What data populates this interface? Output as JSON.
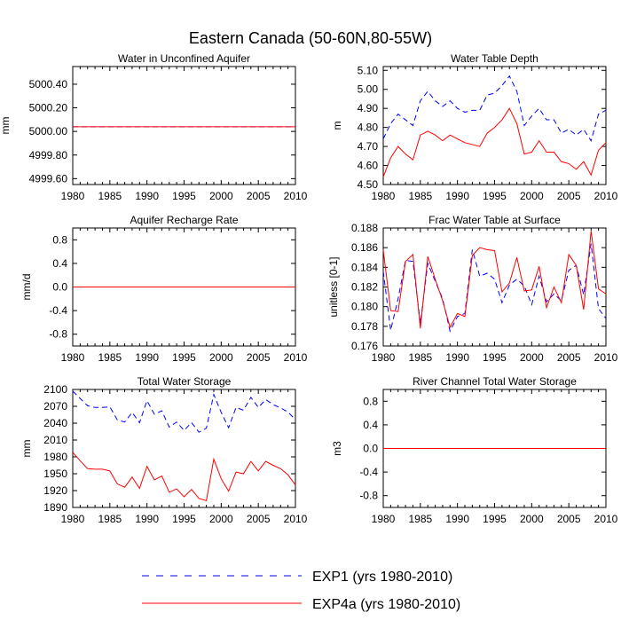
{
  "title": "Eastern Canada (50-60N,80-55W)",
  "legend": [
    {
      "label": "EXP1 (yrs 1980-2010)",
      "color": "#0000ff",
      "dash": "dashed"
    },
    {
      "label": "EXP4a (yrs 1980-2010)",
      "color": "#ff0000",
      "dash": "solid"
    }
  ],
  "chart_data": [
    {
      "type": "line",
      "title": "Water in Unconfined Aquifer",
      "ylabel": "mm",
      "xlim": [
        1980,
        2010
      ],
      "ylim": [
        4999.55,
        5000.55
      ],
      "yticks": [
        4999.6,
        4999.8,
        5000.0,
        5000.2,
        5000.4
      ],
      "ytick_labels": [
        "4999.60",
        "4999.80",
        "5000.00",
        "5000.20",
        "5000.40"
      ],
      "xticks": [
        1980,
        1985,
        1990,
        1995,
        2000,
        2005,
        2010
      ],
      "series": [
        {
          "name": "EXP1 (yrs 1980-2010)",
          "x": [
            1980,
            2010
          ],
          "values": [
            5000.04,
            5000.04
          ]
        },
        {
          "name": "EXP4a (yrs 1980-2010)",
          "x": [
            1980,
            2010
          ],
          "values": [
            5000.04,
            5000.04
          ]
        }
      ]
    },
    {
      "type": "line",
      "title": "Water Table Depth",
      "ylabel": "m",
      "xlim": [
        1980,
        2010
      ],
      "ylim": [
        4.5,
        5.12
      ],
      "yticks": [
        4.5,
        4.6,
        4.7,
        4.8,
        4.9,
        5.0,
        5.1
      ],
      "ytick_labels": [
        "4.50",
        "4.60",
        "4.70",
        "4.80",
        "4.90",
        "5.00",
        "5.10"
      ],
      "xticks": [
        1980,
        1985,
        1990,
        1995,
        2000,
        2005,
        2010
      ],
      "x": [
        1980,
        1981,
        1982,
        1983,
        1984,
        1985,
        1986,
        1987,
        1988,
        1989,
        1990,
        1991,
        1992,
        1993,
        1994,
        1995,
        1996,
        1997,
        1998,
        1999,
        2000,
        2001,
        2002,
        2003,
        2004,
        2005,
        2006,
        2007,
        2008,
        2009,
        2010
      ],
      "series": [
        {
          "name": "EXP1 (yrs 1980-2010)",
          "values": [
            4.74,
            4.82,
            4.87,
            4.84,
            4.81,
            4.94,
            4.99,
            4.94,
            4.91,
            4.94,
            4.9,
            4.88,
            4.89,
            4.89,
            4.97,
            4.98,
            5.02,
            5.07,
            4.99,
            4.81,
            4.86,
            4.9,
            4.84,
            4.84,
            4.77,
            4.79,
            4.76,
            4.79,
            4.73,
            4.87,
            4.89
          ]
        },
        {
          "name": "EXP4a (yrs 1980-2010)",
          "values": [
            4.54,
            4.64,
            4.7,
            4.66,
            4.63,
            4.76,
            4.78,
            4.76,
            4.73,
            4.76,
            4.74,
            4.72,
            4.71,
            4.7,
            4.77,
            4.8,
            4.84,
            4.9,
            4.82,
            4.66,
            4.67,
            4.73,
            4.67,
            4.67,
            4.62,
            4.61,
            4.58,
            4.62,
            4.55,
            4.68,
            4.72
          ]
        }
      ]
    },
    {
      "type": "line",
      "title": "Aquifer Recharge Rate",
      "ylabel": "mm/d",
      "xlim": [
        1980,
        2010
      ],
      "ylim": [
        -1.0,
        1.0
      ],
      "yticks": [
        -0.8,
        -0.4,
        0.0,
        0.4,
        0.8
      ],
      "ytick_labels": [
        "-0.8",
        "-0.4",
        "0.0",
        "0.4",
        "0.8"
      ],
      "xticks": [
        1980,
        1985,
        1990,
        1995,
        2000,
        2005,
        2010
      ],
      "series": [
        {
          "name": "EXP1 (yrs 1980-2010)",
          "x": [
            1980,
            2010
          ],
          "values": [
            0.0,
            0.0
          ]
        },
        {
          "name": "EXP4a (yrs 1980-2010)",
          "x": [
            1980,
            2010
          ],
          "values": [
            0.0,
            0.0
          ]
        }
      ]
    },
    {
      "type": "line",
      "title": "Frac Water Table at Surface",
      "ylabel": "unitless [0-1]",
      "xlim": [
        1980,
        2010
      ],
      "ylim": [
        0.176,
        0.188
      ],
      "yticks": [
        0.176,
        0.178,
        0.18,
        0.182,
        0.184,
        0.186,
        0.188
      ],
      "ytick_labels": [
        "0.176",
        "0.178",
        "0.180",
        "0.182",
        "0.184",
        "0.186",
        "0.188"
      ],
      "xticks": [
        1980,
        1985,
        1990,
        1995,
        2000,
        2005,
        2010
      ],
      "x": [
        1980,
        1981,
        1982,
        1983,
        1984,
        1985,
        1986,
        1987,
        1988,
        1989,
        1990,
        1991,
        1992,
        1993,
        1994,
        1995,
        1996,
        1997,
        1998,
        1999,
        2000,
        2001,
        2002,
        2003,
        2004,
        2005,
        2006,
        2007,
        2008,
        2009,
        2010
      ],
      "series": [
        {
          "name": "EXP1 (yrs 1980-2010)",
          "values": [
            0.1836,
            0.1776,
            0.1808,
            0.1847,
            0.1846,
            0.1783,
            0.1844,
            0.1826,
            0.1808,
            0.1775,
            0.179,
            0.1793,
            0.1858,
            0.1831,
            0.1834,
            0.1828,
            0.1804,
            0.1822,
            0.1828,
            0.1821,
            0.1802,
            0.1831,
            0.1805,
            0.1813,
            0.1806,
            0.1837,
            0.1842,
            0.1812,
            0.1864,
            0.1798,
            0.1788
          ]
        },
        {
          "name": "EXP4a (yrs 1980-2010)",
          "values": [
            0.1858,
            0.1796,
            0.1795,
            0.1846,
            0.1853,
            0.1778,
            0.1851,
            0.1828,
            0.1806,
            0.1779,
            0.1793,
            0.179,
            0.1852,
            0.186,
            0.1858,
            0.1857,
            0.1815,
            0.1824,
            0.185,
            0.1816,
            0.1817,
            0.1841,
            0.1799,
            0.182,
            0.1804,
            0.1853,
            0.1842,
            0.1797,
            0.1877,
            0.1818,
            0.1813
          ]
        }
      ]
    },
    {
      "type": "line",
      "title": "Total Water Storage",
      "ylabel": "mm",
      "xlim": [
        1980,
        2010
      ],
      "ylim": [
        1890,
        2100
      ],
      "yticks": [
        1890,
        1920,
        1950,
        1980,
        2010,
        2040,
        2070,
        2100
      ],
      "ytick_labels": [
        "1890",
        "1920",
        "1950",
        "1980",
        "2010",
        "2040",
        "2070",
        "2100"
      ],
      "xticks": [
        1980,
        1985,
        1990,
        1995,
        2000,
        2005,
        2010
      ],
      "x": [
        1980,
        1981,
        1982,
        1983,
        1984,
        1985,
        1986,
        1987,
        1988,
        1989,
        1990,
        1991,
        1992,
        1993,
        1994,
        1995,
        1996,
        1997,
        1998,
        1999,
        2000,
        2001,
        2002,
        2003,
        2004,
        2005,
        2006,
        2007,
        2008,
        2009,
        2010
      ],
      "series": [
        {
          "name": "EXP1 (yrs 1980-2010)",
          "values": [
            2097,
            2084,
            2071,
            2068,
            2068,
            2069,
            2046,
            2042,
            2059,
            2041,
            2080,
            2056,
            2062,
            2033,
            2042,
            2027,
            2041,
            2024,
            2031,
            2091,
            2059,
            2032,
            2068,
            2063,
            2086,
            2068,
            2082,
            2073,
            2067,
            2060,
            2046
          ]
        },
        {
          "name": "EXP4a (yrs 1980-2010)",
          "values": [
            1988,
            1973,
            1959,
            1958,
            1958,
            1955,
            1932,
            1926,
            1944,
            1924,
            1963,
            1939,
            1946,
            1917,
            1923,
            1909,
            1922,
            1906,
            1902,
            1976,
            1941,
            1919,
            1953,
            1950,
            1972,
            1955,
            1972,
            1965,
            1959,
            1948,
            1930
          ]
        }
      ]
    },
    {
      "type": "line",
      "title": "River Channel Total Water Storage",
      "ylabel": "m3",
      "xlim": [
        1980,
        2010
      ],
      "ylim": [
        -1.0,
        1.0
      ],
      "yticks": [
        -0.8,
        -0.4,
        0.0,
        0.4,
        0.8
      ],
      "ytick_labels": [
        "-0.8",
        "-0.4",
        "0.0",
        "0.4",
        "0.8"
      ],
      "xticks": [
        1980,
        1985,
        1990,
        1995,
        2000,
        2005,
        2010
      ],
      "series": [
        {
          "name": "EXP1 (yrs 1980-2010)",
          "x": [
            1980,
            2010
          ],
          "values": [
            0.0,
            0.0
          ]
        },
        {
          "name": "EXP4a (yrs 1980-2010)",
          "x": [
            1980,
            2010
          ],
          "values": [
            0.0,
            0.0
          ]
        }
      ]
    }
  ]
}
